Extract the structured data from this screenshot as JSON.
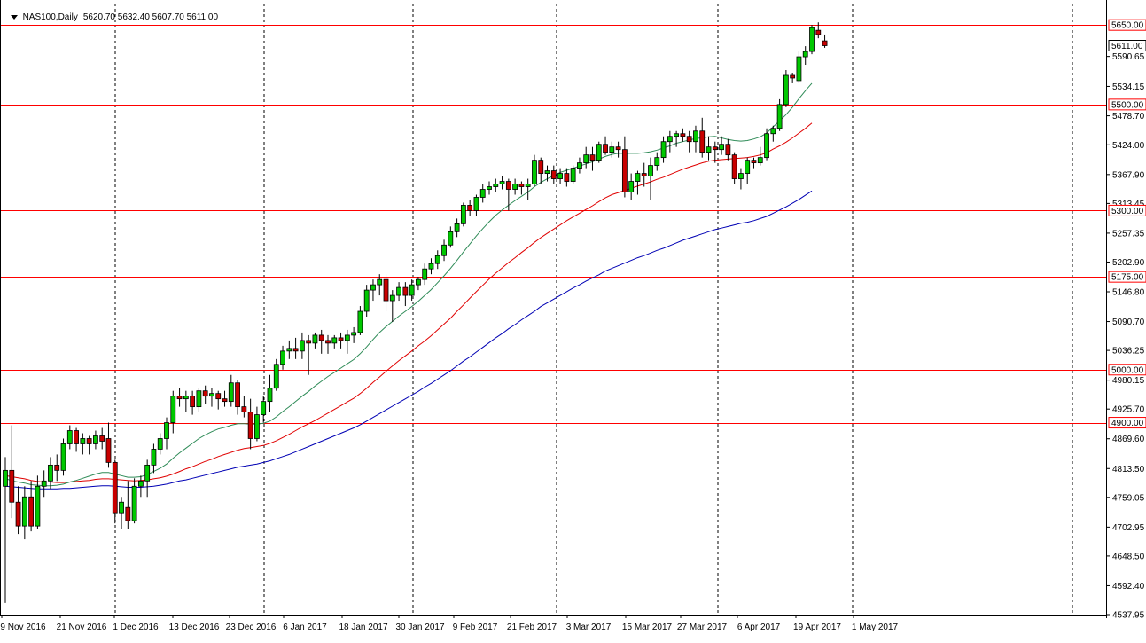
{
  "header": {
    "symbol": "NAS100,Daily",
    "ohlc": "5620.70 5632.40 5607.70 5611.00"
  },
  "colors": {
    "background": "#ffffff",
    "bull_body": "#00c800",
    "bear_body": "#c80000",
    "wick": "#000000",
    "level_line": "#ff0000",
    "ma_fast": "#2e8b57",
    "ma_mid": "#e00000",
    "ma_slow": "#0000b4",
    "price_tag_bg": "#ffffff",
    "current_price_tag_bg": "#ffffff"
  },
  "chart_data": {
    "type": "candlestick",
    "x_tick_labels": [
      "9 Nov 2016",
      "21 Nov 2016",
      "1 Dec 2016",
      "13 Dec 2016",
      "23 Dec 2016",
      "6 Jan 2017",
      "18 Jan 2017",
      "30 Jan 2017",
      "9 Feb 2017",
      "21 Feb 2017",
      "3 Mar 2017",
      "15 Mar 2017",
      "27 Mar 2017",
      "6 Apr 2017",
      "19 Apr 2017",
      "1 May 2017"
    ],
    "y_tick_labels": [
      "5646.10",
      "5590.65",
      "5534.15",
      "5478.70",
      "5424.00",
      "5367.90",
      "5313.45",
      "5257.35",
      "5202.90",
      "5146.80",
      "5090.70",
      "5036.25",
      "4980.15",
      "4925.70",
      "4869.60",
      "4813.50",
      "4759.05",
      "4702.95",
      "4648.50",
      "4592.40",
      "4537.95"
    ],
    "ylim": [
      4537.95,
      5657.0
    ],
    "price_levels": [
      "5650.00",
      "5500.00",
      "5300.00",
      "5175.00",
      "5000.00",
      "4900.00"
    ],
    "current_price": "5611.00",
    "candles": [
      [
        4780,
        4835,
        4560,
        4810
      ],
      [
        4810,
        4895,
        4720,
        4750
      ],
      [
        4750,
        4780,
        4690,
        4705
      ],
      [
        4705,
        4780,
        4680,
        4760
      ],
      [
        4760,
        4790,
        4695,
        4705
      ],
      [
        4705,
        4800,
        4700,
        4780
      ],
      [
        4780,
        4810,
        4760,
        4790
      ],
      [
        4790,
        4835,
        4775,
        4820
      ],
      [
        4820,
        4840,
        4790,
        4810
      ],
      [
        4810,
        4870,
        4800,
        4860
      ],
      [
        4860,
        4895,
        4850,
        4885
      ],
      [
        4885,
        4890,
        4845,
        4860
      ],
      [
        4860,
        4880,
        4840,
        4870
      ],
      [
        4870,
        4875,
        4840,
        4860
      ],
      [
        4860,
        4885,
        4850,
        4875
      ],
      [
        4875,
        4890,
        4850,
        4865
      ],
      [
        4870,
        4900,
        4815,
        4825
      ],
      [
        4825,
        4830,
        4710,
        4730
      ],
      [
        4730,
        4760,
        4700,
        4750
      ],
      [
        4740,
        4790,
        4700,
        4715
      ],
      [
        4715,
        4795,
        4710,
        4780
      ],
      [
        4780,
        4800,
        4760,
        4790
      ],
      [
        4790,
        4830,
        4760,
        4820
      ],
      [
        4820,
        4860,
        4805,
        4850
      ],
      [
        4850,
        4880,
        4840,
        4870
      ],
      [
        4870,
        4910,
        4850,
        4900
      ],
      [
        4900,
        4960,
        4880,
        4950
      ],
      [
        4950,
        4965,
        4930,
        4945
      ],
      [
        4945,
        4960,
        4920,
        4950
      ],
      [
        4950,
        4960,
        4915,
        4930
      ],
      [
        4930,
        4965,
        4920,
        4960
      ],
      [
        4960,
        4970,
        4935,
        4950
      ],
      [
        4950,
        4965,
        4930,
        4955
      ],
      [
        4955,
        4960,
        4925,
        4945
      ],
      [
        4945,
        4960,
        4930,
        4940
      ],
      [
        4940,
        4990,
        4930,
        4975
      ],
      [
        4975,
        4980,
        4915,
        4930
      ],
      [
        4930,
        4950,
        4910,
        4920
      ],
      [
        4920,
        4945,
        4850,
        4870
      ],
      [
        4870,
        4930,
        4865,
        4915
      ],
      [
        4915,
        4950,
        4900,
        4940
      ],
      [
        4940,
        4990,
        4920,
        4965
      ],
      [
        4965,
        5020,
        4960,
        5010
      ],
      [
        5010,
        5045,
        5000,
        5035
      ],
      [
        5035,
        5055,
        5020,
        5040
      ],
      [
        5040,
        5060,
        5020,
        5035
      ],
      [
        5035,
        5070,
        5020,
        5055
      ],
      [
        5055,
        5065,
        4990,
        5050
      ],
      [
        5050,
        5070,
        5040,
        5065
      ],
      [
        5065,
        5075,
        5030,
        5055
      ],
      [
        5055,
        5065,
        5030,
        5050
      ],
      [
        5050,
        5065,
        5040,
        5060
      ],
      [
        5060,
        5070,
        5040,
        5055
      ],
      [
        5055,
        5075,
        5030,
        5065
      ],
      [
        5065,
        5080,
        5050,
        5070
      ],
      [
        5070,
        5120,
        5065,
        5110
      ],
      [
        5110,
        5160,
        5100,
        5150
      ],
      [
        5150,
        5170,
        5130,
        5160
      ],
      [
        5160,
        5180,
        5140,
        5170
      ],
      [
        5170,
        5180,
        5110,
        5130
      ],
      [
        5130,
        5150,
        5090,
        5140
      ],
      [
        5140,
        5165,
        5130,
        5155
      ],
      [
        5155,
        5165,
        5120,
        5140
      ],
      [
        5140,
        5170,
        5130,
        5160
      ],
      [
        5160,
        5175,
        5150,
        5170
      ],
      [
        5170,
        5200,
        5160,
        5190
      ],
      [
        5190,
        5210,
        5180,
        5200
      ],
      [
        5200,
        5225,
        5190,
        5215
      ],
      [
        5215,
        5245,
        5205,
        5235
      ],
      [
        5235,
        5270,
        5230,
        5260
      ],
      [
        5260,
        5285,
        5250,
        5275
      ],
      [
        5275,
        5315,
        5270,
        5310
      ],
      [
        5310,
        5320,
        5290,
        5300
      ],
      [
        5300,
        5330,
        5290,
        5325
      ],
      [
        5325,
        5350,
        5315,
        5340
      ],
      [
        5340,
        5355,
        5330,
        5345
      ],
      [
        5345,
        5360,
        5335,
        5350
      ],
      [
        5350,
        5365,
        5340,
        5355
      ],
      [
        5355,
        5360,
        5300,
        5340
      ],
      [
        5340,
        5360,
        5330,
        5350
      ],
      [
        5350,
        5355,
        5330,
        5345
      ],
      [
        5345,
        5360,
        5320,
        5350
      ],
      [
        5350,
        5405,
        5345,
        5395
      ],
      [
        5395,
        5400,
        5350,
        5370
      ],
      [
        5370,
        5385,
        5355,
        5375
      ],
      [
        5375,
        5385,
        5350,
        5360
      ],
      [
        5360,
        5380,
        5350,
        5370
      ],
      [
        5370,
        5380,
        5345,
        5355
      ],
      [
        5355,
        5385,
        5350,
        5380
      ],
      [
        5380,
        5400,
        5370,
        5390
      ],
      [
        5390,
        5420,
        5380,
        5405
      ],
      [
        5405,
        5420,
        5375,
        5395
      ],
      [
        5395,
        5430,
        5390,
        5425
      ],
      [
        5425,
        5440,
        5405,
        5410
      ],
      [
        5410,
        5430,
        5400,
        5420
      ],
      [
        5420,
        5430,
        5400,
        5415
      ],
      [
        5415,
        5440,
        5325,
        5335
      ],
      [
        5335,
        5370,
        5320,
        5355
      ],
      [
        5355,
        5375,
        5330,
        5370
      ],
      [
        5370,
        5390,
        5345,
        5365
      ],
      [
        5365,
        5400,
        5320,
        5385
      ],
      [
        5385,
        5410,
        5375,
        5400
      ],
      [
        5400,
        5440,
        5390,
        5430
      ],
      [
        5430,
        5450,
        5410,
        5440
      ],
      [
        5440,
        5450,
        5420,
        5445
      ],
      [
        5445,
        5455,
        5430,
        5440
      ],
      [
        5440,
        5450,
        5410,
        5430
      ],
      [
        5430,
        5460,
        5410,
        5450
      ],
      [
        5450,
        5475,
        5400,
        5410
      ],
      [
        5410,
        5440,
        5395,
        5420
      ],
      [
        5420,
        5430,
        5390,
        5415
      ],
      [
        5415,
        5440,
        5405,
        5425
      ],
      [
        5425,
        5435,
        5395,
        5405
      ],
      [
        5405,
        5410,
        5350,
        5360
      ],
      [
        5360,
        5380,
        5340,
        5370
      ],
      [
        5370,
        5400,
        5350,
        5395
      ],
      [
        5395,
        5400,
        5380,
        5390
      ],
      [
        5390,
        5420,
        5385,
        5400
      ],
      [
        5400,
        5455,
        5395,
        5445
      ],
      [
        5445,
        5460,
        5430,
        5455
      ],
      [
        5455,
        5510,
        5450,
        5500
      ],
      [
        5500,
        5565,
        5495,
        5555
      ],
      [
        5555,
        5560,
        5540,
        5550
      ],
      [
        5545,
        5600,
        5540,
        5590
      ],
      [
        5590,
        5610,
        5575,
        5600
      ],
      [
        5600,
        5650,
        5595,
        5645
      ],
      [
        5640,
        5655,
        5625,
        5632
      ],
      [
        5620,
        5632,
        5607,
        5611
      ]
    ],
    "ma_fast": [
      4795,
      4790,
      4788,
      4786,
      4783,
      4782,
      4781,
      4781,
      4782,
      4784,
      4788,
      4791,
      4795,
      4799,
      4803,
      4806,
      4806,
      4803,
      4800,
      4797,
      4797,
      4798,
      4802,
      4808,
      4814,
      4822,
      4833,
      4843,
      4852,
      4861,
      4870,
      4877,
      4883,
      4888,
      4891,
      4895,
      4898,
      4898,
      4897,
      4897,
      4899,
      4903,
      4911,
      4921,
      4930,
      4940,
      4950,
      4959,
      4969,
      4978,
      4987,
      4995,
      5003,
      5011,
      5019,
      5030,
      5043,
      5057,
      5070,
      5081,
      5091,
      5101,
      5110,
      5119,
      5129,
      5140,
      5151,
      5164,
      5177,
      5191,
      5206,
      5222,
      5237,
      5252,
      5266,
      5279,
      5291,
      5301,
      5310,
      5319,
      5327,
      5335,
      5345,
      5353,
      5360,
      5366,
      5372,
      5376,
      5380,
      5384,
      5388,
      5392,
      5397,
      5402,
      5406,
      5408,
      5408,
      5408,
      5408,
      5409,
      5411,
      5414,
      5418,
      5422,
      5427,
      5430,
      5433,
      5436,
      5437,
      5439,
      5440,
      5437,
      5434,
      5432,
      5431,
      5432,
      5435,
      5439,
      5446,
      5458,
      5469,
      5481,
      5495,
      5511,
      5526,
      5540
    ],
    "ma_mid": [
      4800,
      4798,
      4796,
      4794,
      4791,
      4789,
      4788,
      4788,
      4787,
      4787,
      4788,
      4789,
      4790,
      4791,
      4793,
      4794,
      4794,
      4793,
      4792,
      4791,
      4790,
      4791,
      4792,
      4794,
      4796,
      4799,
      4803,
      4808,
      4813,
      4817,
      4822,
      4827,
      4831,
      4836,
      4840,
      4844,
      4848,
      4851,
      4853,
      4855,
      4857,
      4861,
      4866,
      4872,
      4878,
      4885,
      4892,
      4898,
      4904,
      4911,
      4918,
      4925,
      4932,
      4939,
      4946,
      4955,
      4965,
      4976,
      4986,
      4997,
      5007,
      5017,
      5026,
      5035,
      5045,
      5054,
      5064,
      5075,
      5086,
      5097,
      5110,
      5122,
      5135,
      5147,
      5159,
      5171,
      5182,
      5192,
      5202,
      5211,
      5221,
      5230,
      5240,
      5249,
      5257,
      5265,
      5273,
      5281,
      5288,
      5295,
      5302,
      5309,
      5317,
      5324,
      5330,
      5334,
      5338,
      5342,
      5346,
      5350,
      5354,
      5359,
      5363,
      5368,
      5373,
      5378,
      5382,
      5386,
      5390,
      5393,
      5395,
      5396,
      5397,
      5398,
      5399,
      5400,
      5402,
      5405,
      5409,
      5416,
      5422,
      5429,
      5437,
      5446,
      5455,
      5465
    ],
    "ma_slow": [
      4780,
      4779,
      4778,
      4777,
      4776,
      4775,
      4775,
      4775,
      4775,
      4776,
      4776,
      4777,
      4778,
      4779,
      4780,
      4781,
      4781,
      4780,
      4779,
      4778,
      4778,
      4778,
      4779,
      4780,
      4782,
      4784,
      4787,
      4790,
      4792,
      4795,
      4798,
      4801,
      4804,
      4807,
      4810,
      4813,
      4816,
      4818,
      4820,
      4822,
      4825,
      4828,
      4832,
      4836,
      4840,
      4845,
      4850,
      4855,
      4860,
      4865,
      4870,
      4875,
      4880,
      4885,
      4890,
      4896,
      4903,
      4910,
      4917,
      4924,
      4931,
      4938,
      4945,
      4952,
      4959,
      4967,
      4974,
      4982,
      4990,
      4998,
      5007,
      5016,
      5024,
      5033,
      5042,
      5051,
      5060,
      5068,
      5077,
      5085,
      5094,
      5102,
      5110,
      5119,
      5126,
      5133,
      5140,
      5147,
      5154,
      5160,
      5167,
      5173,
      5179,
      5186,
      5191,
      5196,
      5201,
      5206,
      5211,
      5215,
      5220,
      5225,
      5229,
      5234,
      5239,
      5244,
      5248,
      5252,
      5256,
      5260,
      5264,
      5267,
      5270,
      5273,
      5276,
      5278,
      5281,
      5285,
      5289,
      5295,
      5301,
      5307,
      5314,
      5321,
      5329,
      5337
    ]
  }
}
